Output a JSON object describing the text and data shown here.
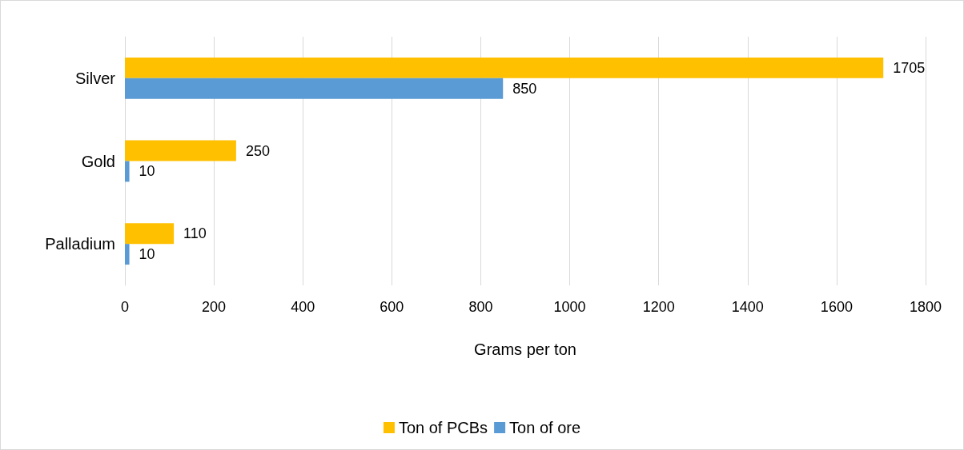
{
  "chart_data": {
    "type": "bar",
    "orientation": "horizontal",
    "xlabel": "Grams per ton",
    "categories": [
      "Silver",
      "Gold",
      "Palladium"
    ],
    "series": [
      {
        "name": "Ton of PCBs",
        "color": "#ffc000",
        "values": [
          1705,
          250,
          110
        ]
      },
      {
        "name": "Ton of ore",
        "color": "#5b9bd5",
        "values": [
          850,
          10,
          10
        ]
      }
    ],
    "xlim": [
      0,
      1800
    ],
    "xticks": [
      0,
      200,
      400,
      600,
      800,
      1000,
      1200,
      1400,
      1600,
      1800
    ],
    "grid": "x",
    "legend": "bottom",
    "data_labels": true
  }
}
